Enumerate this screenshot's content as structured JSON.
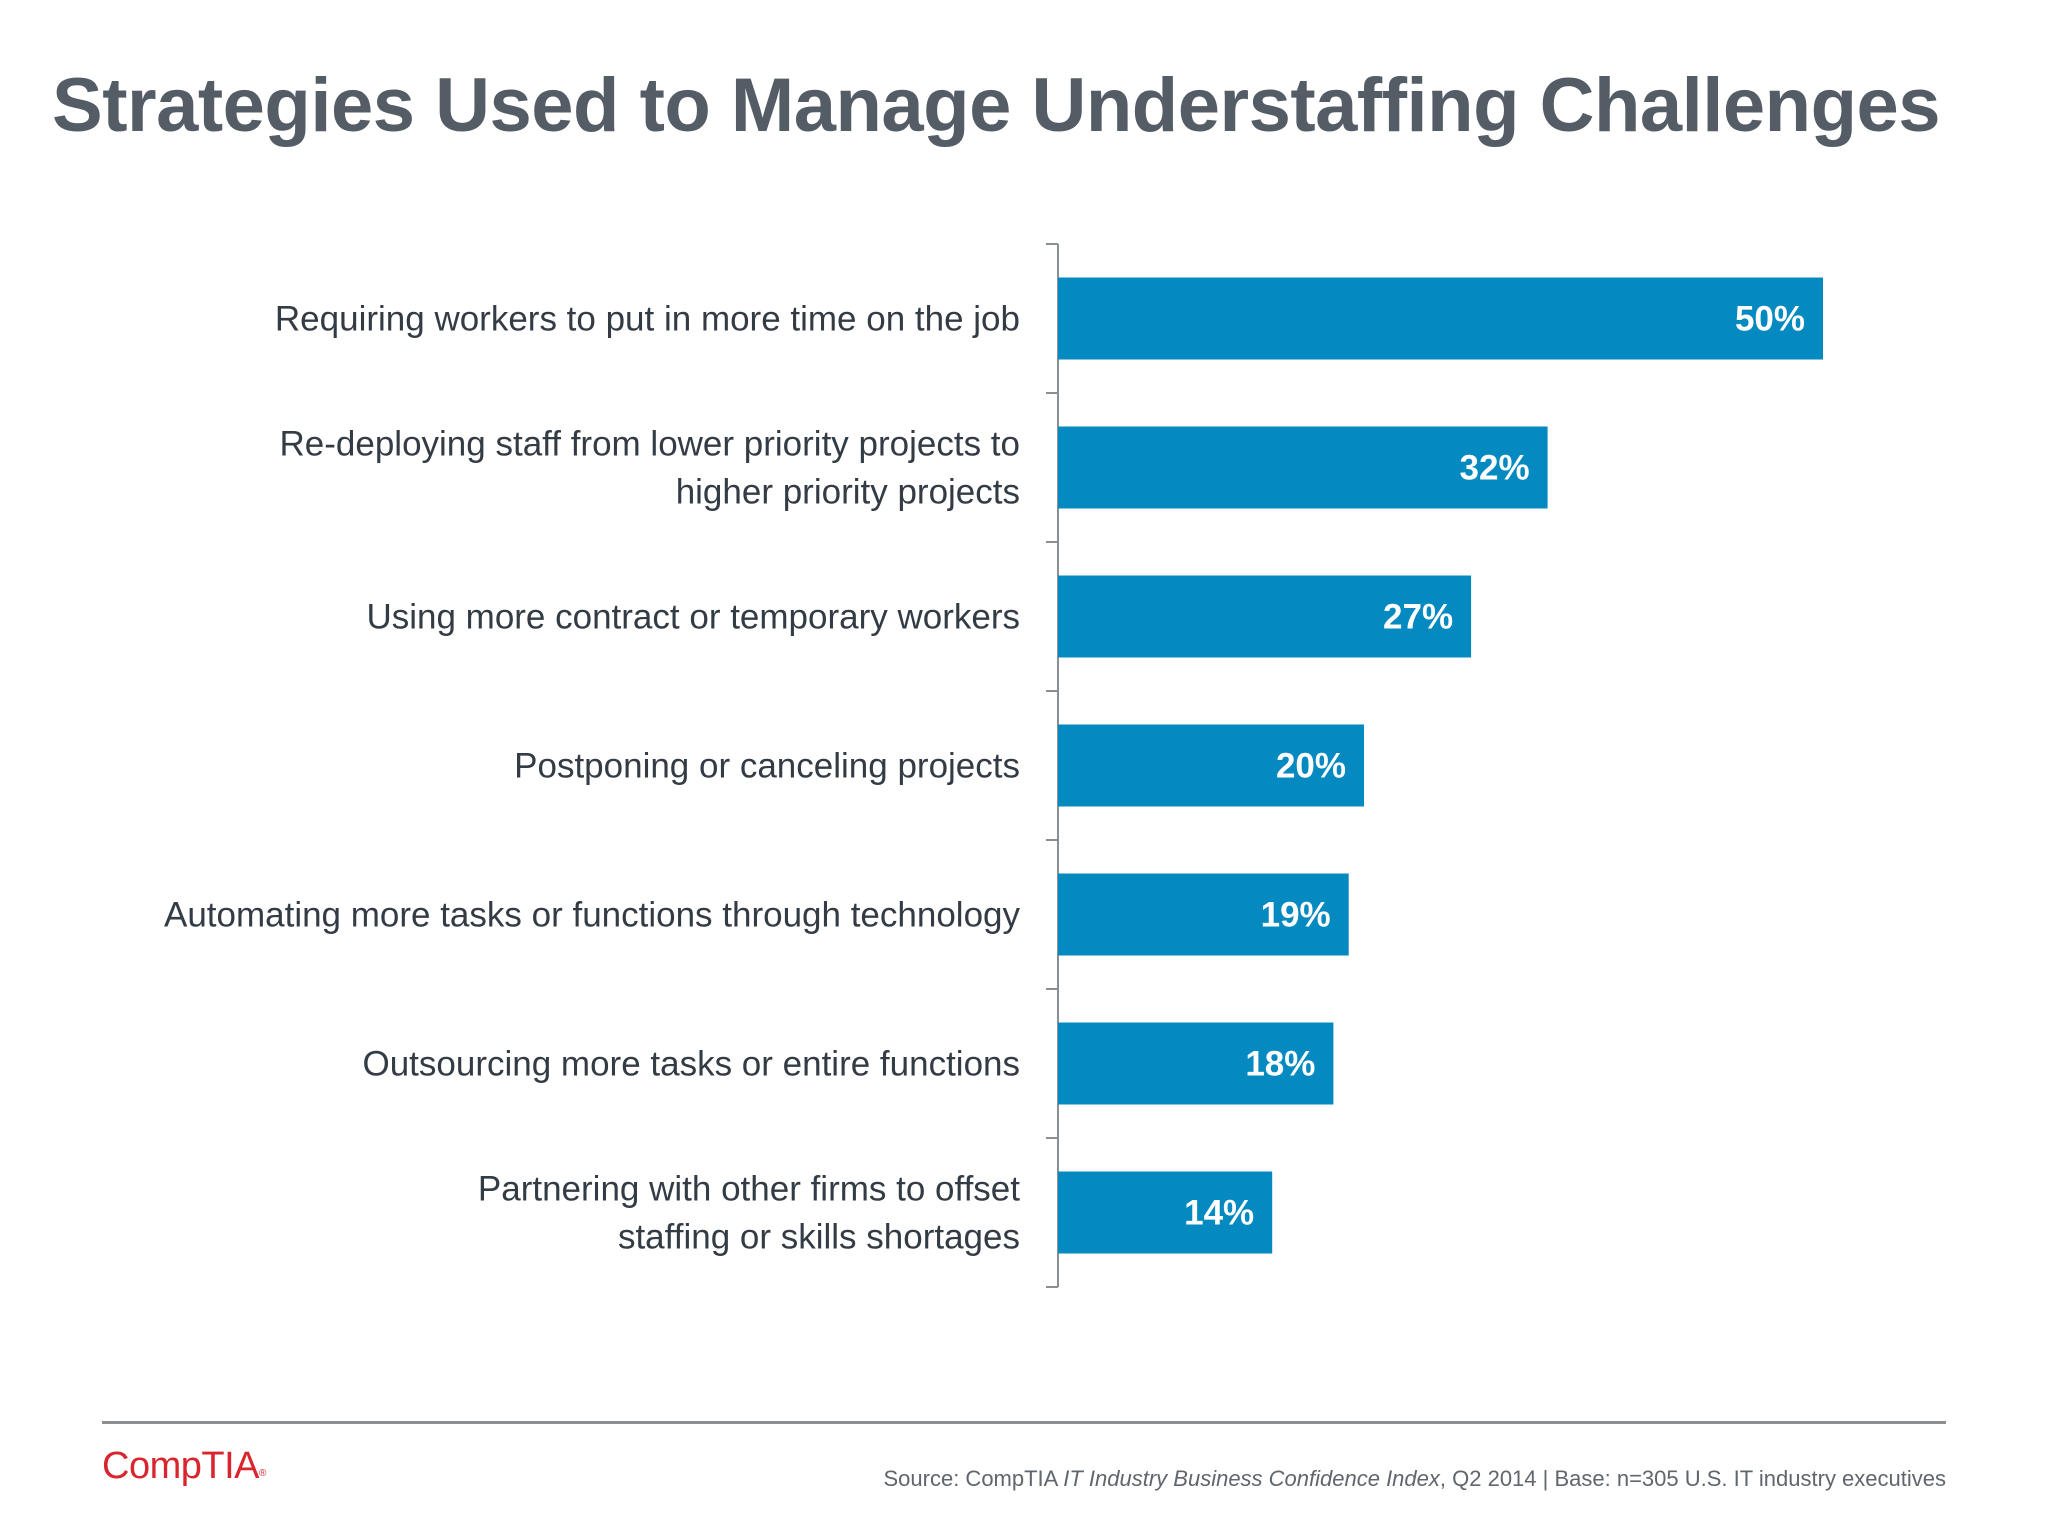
{
  "title": "Strategies Used to Manage Understaffing Challenges",
  "chart_data": {
    "type": "bar",
    "orientation": "horizontal",
    "categories": [
      [
        "Requiring workers to put in more time on the job"
      ],
      [
        "Re-deploying staff from lower priority projects to",
        "higher priority projects"
      ],
      [
        "Using more contract or temporary workers"
      ],
      [
        "Postponing or canceling projects"
      ],
      [
        "Automating more tasks or functions through technology"
      ],
      [
        "Outsourcing more tasks or entire functions"
      ],
      [
        "Partnering with other firms to offset",
        "staffing or skills shortages"
      ]
    ],
    "values": [
      50,
      32,
      27,
      20,
      19,
      18,
      14
    ],
    "value_labels": [
      "50%",
      "32%",
      "27%",
      "20%",
      "19%",
      "18%",
      "14%"
    ],
    "bar_color": "#0589c1",
    "xlim": [
      0,
      50
    ],
    "grid": false
  },
  "footer": {
    "logo_text": "CompTIA",
    "logo_mark": "®",
    "source_prefix": "Source: CompTIA ",
    "source_italic": "IT Industry Business Confidence Index",
    "source_suffix": ", Q2 2014 | Base: n=305 U.S. IT industry executives"
  }
}
